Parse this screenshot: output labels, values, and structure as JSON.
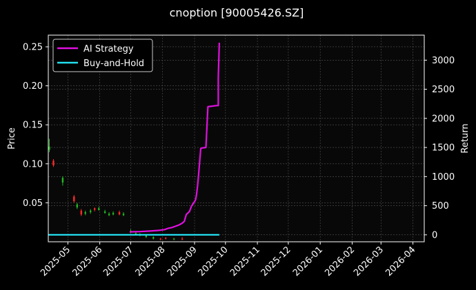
{
  "chart_data": {
    "type": "line",
    "title": "cnoption [90005426.SZ]",
    "ylabel_left": "Price",
    "ylabel_right": "Return",
    "xlabel": "",
    "xlim": [
      "2025-04-12",
      "2026-04-12"
    ],
    "ylim_left": [
      0.0,
      0.265
    ],
    "ylim_right": [
      -120,
      3430
    ],
    "grid": true,
    "legend_position": "top-left",
    "x_ticks": [
      "2025-05",
      "2025-06",
      "2025-07",
      "2025-08",
      "2025-09",
      "2025-10",
      "2025-11",
      "2025-12",
      "2026-01",
      "2026-02",
      "2026-03",
      "2026-04"
    ],
    "y_ticks_left": [
      0.05,
      0.1,
      0.15,
      0.2,
      0.25
    ],
    "y_ticks_left_labels": [
      "0.05",
      "0.10",
      "0.15",
      "0.20",
      "0.25"
    ],
    "y_ticks_right": [
      0,
      500,
      1000,
      1500,
      2000,
      2500,
      3000
    ],
    "y_ticks_right_labels": [
      "0",
      "500",
      "1000",
      "1500",
      "2000",
      "2500",
      "3000"
    ],
    "colors": {
      "background": "#000000",
      "grid": "#555555",
      "ai_strategy": "#e010e0",
      "buy_and_hold": "#22e0f0",
      "candle_up": "#ff2a2a",
      "candle_down": "#22b822"
    },
    "series": [
      {
        "name": "AI Strategy",
        "axis": "right",
        "x": [
          "2025-06-30",
          "2025-07-10",
          "2025-07-20",
          "2025-07-28",
          "2025-08-03",
          "2025-08-06",
          "2025-08-10",
          "2025-08-14",
          "2025-08-17",
          "2025-08-20",
          "2025-08-22",
          "2025-08-24",
          "2025-08-27",
          "2025-08-29",
          "2025-09-02",
          "2025-09-03",
          "2025-09-04",
          "2025-09-05",
          "2025-09-07",
          "2025-09-08",
          "2025-09-12",
          "2025-09-14",
          "2025-09-18",
          "2025-09-22",
          "2025-09-24",
          "2025-09-24",
          "2025-09-25"
        ],
        "y": [
          50,
          55,
          65,
          75,
          90,
          110,
          125,
          150,
          170,
          200,
          230,
          350,
          400,
          490,
          600,
          700,
          850,
          1050,
          1480,
          1490,
          1500,
          2200,
          2210,
          2220,
          2220,
          2700,
          3300
        ]
      },
      {
        "name": "Buy-and-Hold",
        "axis": "right",
        "x": [
          "2025-04-12",
          "2025-09-25"
        ],
        "y": [
          0,
          0
        ]
      }
    ],
    "candles": [
      {
        "x": "2025-04-13",
        "open": 0.122,
        "close": 0.118,
        "high": 0.132,
        "low": 0.115
      },
      {
        "x": "2025-04-17",
        "open": 0.098,
        "close": 0.104,
        "high": 0.106,
        "low": 0.096
      },
      {
        "x": "2025-04-26",
        "open": 0.082,
        "close": 0.076,
        "high": 0.084,
        "low": 0.072
      },
      {
        "x": "2025-05-07",
        "open": 0.052,
        "close": 0.058,
        "high": 0.06,
        "low": 0.05
      },
      {
        "x": "2025-05-10",
        "open": 0.048,
        "close": 0.044,
        "high": 0.05,
        "low": 0.042
      },
      {
        "x": "2025-05-14",
        "open": 0.035,
        "close": 0.04,
        "high": 0.042,
        "low": 0.033
      },
      {
        "x": "2025-05-18",
        "open": 0.038,
        "close": 0.036,
        "high": 0.04,
        "low": 0.034
      },
      {
        "x": "2025-05-23",
        "open": 0.04,
        "close": 0.038,
        "high": 0.042,
        "low": 0.036
      },
      {
        "x": "2025-05-27",
        "open": 0.041,
        "close": 0.043,
        "high": 0.044,
        "low": 0.039
      },
      {
        "x": "2025-05-31",
        "open": 0.043,
        "close": 0.041,
        "high": 0.045,
        "low": 0.04
      },
      {
        "x": "2025-06-06",
        "open": 0.039,
        "close": 0.037,
        "high": 0.041,
        "low": 0.036
      },
      {
        "x": "2025-06-10",
        "open": 0.036,
        "close": 0.034,
        "high": 0.038,
        "low": 0.033
      },
      {
        "x": "2025-06-14",
        "open": 0.037,
        "close": 0.035,
        "high": 0.039,
        "low": 0.034
      },
      {
        "x": "2025-06-20",
        "open": 0.035,
        "close": 0.038,
        "high": 0.04,
        "low": 0.034
      },
      {
        "x": "2025-06-24",
        "open": 0.036,
        "close": 0.034,
        "high": 0.038,
        "low": 0.033
      },
      {
        "x": "2025-07-01",
        "open": 0.014,
        "close": 0.012,
        "high": 0.016,
        "low": 0.011
      },
      {
        "x": "2025-07-06",
        "open": 0.011,
        "close": 0.009,
        "high": 0.012,
        "low": 0.008
      },
      {
        "x": "2025-07-10",
        "open": 0.01,
        "close": 0.008,
        "high": 0.011,
        "low": 0.007
      },
      {
        "x": "2025-07-16",
        "open": 0.008,
        "close": 0.006,
        "high": 0.009,
        "low": 0.005
      },
      {
        "x": "2025-07-23",
        "open": 0.006,
        "close": 0.004,
        "high": 0.007,
        "low": 0.003
      },
      {
        "x": "2025-07-30",
        "open": 0.003,
        "close": 0.004,
        "high": 0.005,
        "low": 0.002
      },
      {
        "x": "2025-08-04",
        "open": 0.004,
        "close": 0.005,
        "high": 0.006,
        "low": 0.003
      },
      {
        "x": "2025-08-12",
        "open": 0.004,
        "close": 0.003,
        "high": 0.005,
        "low": 0.002
      },
      {
        "x": "2025-08-20",
        "open": 0.003,
        "close": 0.004,
        "high": 0.006,
        "low": 0.002
      }
    ],
    "legend": [
      "AI Strategy",
      "Buy-and-Hold"
    ]
  }
}
